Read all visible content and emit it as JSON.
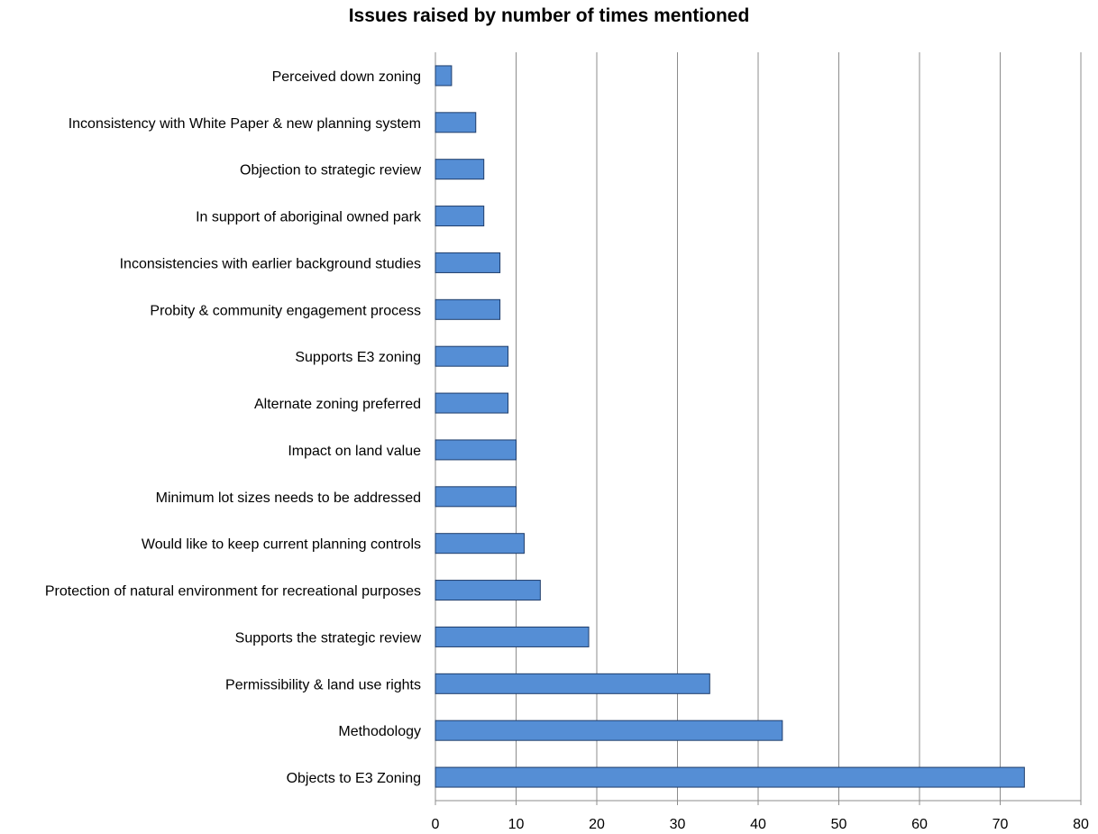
{
  "chart_data": {
    "type": "bar",
    "orientation": "horizontal",
    "title": "Issues raised by number of times mentioned",
    "xlabel": "",
    "ylabel": "",
    "xlim": [
      0,
      80
    ],
    "x_ticks": [
      0,
      10,
      20,
      30,
      40,
      50,
      60,
      70,
      80
    ],
    "grid": "vertical",
    "legend": "none",
    "bar_color": "#558ED5",
    "bar_edge_color": "#1F3D6B",
    "categories": [
      "Perceived down zoning",
      "Inconsistency with White Paper & new planning system",
      "Objection to strategic review",
      "In support of aboriginal owned park",
      "Inconsistencies with earlier background studies",
      "Probity & community engagement process",
      "Supports E3 zoning",
      "Alternate zoning preferred",
      "Impact on land value",
      "Minimum lot sizes needs to be addressed",
      "Would like to keep current planning controls",
      "Protection of natural environment for recreational purposes",
      "Supports the strategic review",
      "Permissibility & land use rights",
      "Methodology",
      "Objects to E3 Zoning"
    ],
    "values": [
      2,
      5,
      6,
      6,
      8,
      8,
      9,
      9,
      10,
      10,
      11,
      13,
      19,
      34,
      43,
      73
    ]
  }
}
